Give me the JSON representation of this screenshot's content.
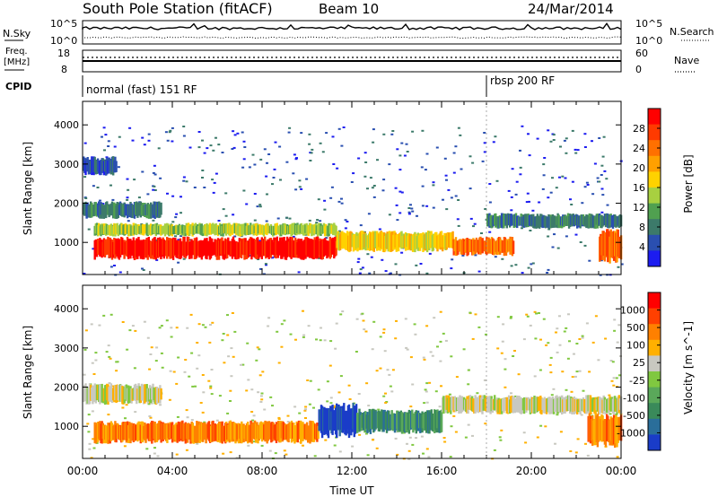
{
  "header": {
    "station": "South Pole Station (fitACF)",
    "beam": "Beam 10",
    "date": "24/Mar/2014"
  },
  "top_panels": {
    "nsky_label": "N.Sky",
    "nsearch_label": "N.Search",
    "nsky_ticks": [
      "10^5",
      "10^0"
    ],
    "nsky_right_ticks": [
      "10^5",
      "10^0"
    ],
    "freq_label_line1": "Freq.",
    "freq_label_line2": "[MHz]",
    "freq_ticks": [
      "18",
      "8"
    ],
    "nave_label": "Nave",
    "nave_ticks": [
      "60",
      "0"
    ],
    "cpid_label": "CPID",
    "cpid_segments": [
      {
        "label": "normal (fast) 151 RF",
        "start_hour": 0
      },
      {
        "label": "rbsp 200 RF",
        "start_hour": 18
      }
    ]
  },
  "chart_data": [
    {
      "type": "heatmap",
      "name": "power-panel",
      "ylabel": "Slant Range [km]",
      "xlabel": "Time UT",
      "x_ticks": [
        "00:00",
        "04:00",
        "08:00",
        "12:00",
        "16:00",
        "20:00",
        "00:00"
      ],
      "x_range_hours": [
        0,
        24
      ],
      "y_ticks": [
        1000,
        2000,
        3000,
        4000
      ],
      "ylim": [
        180,
        4600
      ],
      "colorbar": {
        "label": "Power [dB]",
        "ticks": [
          "4",
          "8",
          "12",
          "16",
          "20",
          "24",
          "28"
        ],
        "colors": [
          "#1c1cf0",
          "#2a4fb0",
          "#3c7a6a",
          "#50a050",
          "#a8d040",
          "#ffd200",
          "#ffa000",
          "#ff7000",
          "#ff3a00",
          "#ff0000"
        ]
      },
      "bands": [
        {
          "range_km": [
            550,
            1150
          ],
          "hours": [
            0.5,
            11.3
          ],
          "level": 9
        },
        {
          "range_km": [
            1150,
            1500
          ],
          "hours": [
            0.5,
            11.3
          ],
          "level": 4
        },
        {
          "range_km": [
            1600,
            2050
          ],
          "hours": [
            0,
            3.5
          ],
          "level": 2
        },
        {
          "range_km": [
            2700,
            3200
          ],
          "hours": [
            0,
            1.5
          ],
          "level": 1
        },
        {
          "range_km": [
            750,
            1300
          ],
          "hours": [
            11.3,
            16.5
          ],
          "level": 5
        },
        {
          "range_km": [
            650,
            1150
          ],
          "hours": [
            16.5,
            19.2
          ],
          "level": 7
        },
        {
          "range_km": [
            1350,
            1750
          ],
          "hours": [
            18,
            24
          ],
          "level": 2
        },
        {
          "range_km": [
            450,
            1350
          ],
          "hours": [
            23,
            24
          ],
          "level": 7
        }
      ]
    },
    {
      "type": "heatmap",
      "name": "velocity-panel",
      "ylabel": "Slant Range [km]",
      "xlabel": "Time UT",
      "x_ticks": [
        "00:00",
        "04:00",
        "08:00",
        "12:00",
        "16:00",
        "20:00",
        "00:00"
      ],
      "x_range_hours": [
        0,
        24
      ],
      "y_ticks": [
        1000,
        2000,
        3000,
        4000
      ],
      "ylim": [
        180,
        4600
      ],
      "colorbar": {
        "label": "Velocity [m s^-1]",
        "ticks": [
          "1000",
          "500",
          "100",
          "25",
          "-25",
          "-100",
          "-500",
          "-1000"
        ],
        "colors": [
          "#1a3cc8",
          "#2a6e9a",
          "#3a8a5a",
          "#5aa85a",
          "#80c840",
          "#c8c8c0",
          "#ffb000",
          "#ff8000",
          "#ff4000",
          "#ff0000"
        ]
      },
      "bands": [
        {
          "range_km": [
            550,
            1150
          ],
          "hours": [
            0.5,
            10.5
          ],
          "level": 7
        },
        {
          "range_km": [
            700,
            1600
          ],
          "hours": [
            10.5,
            12.2
          ],
          "level": 0
        },
        {
          "range_km": [
            800,
            1450
          ],
          "hours": [
            12.2,
            16
          ],
          "level": 2
        },
        {
          "range_km": [
            1550,
            2100
          ],
          "hours": [
            0,
            3.5
          ],
          "level": 5
        },
        {
          "range_km": [
            1300,
            1800
          ],
          "hours": [
            16,
            24
          ],
          "level": 5
        },
        {
          "range_km": [
            450,
            1350
          ],
          "hours": [
            22.5,
            24
          ],
          "level": 7
        }
      ]
    }
  ]
}
